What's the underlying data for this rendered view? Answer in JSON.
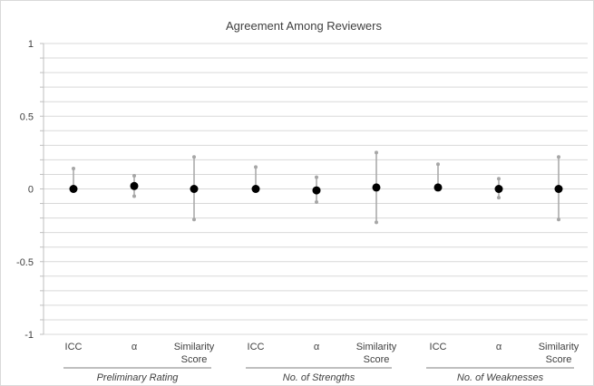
{
  "chart_data": {
    "type": "scatter",
    "title": "Agreement Among Reviewers",
    "xlabel": "",
    "ylabel": "",
    "ylim": [
      -1,
      1
    ],
    "yticks": [
      {
        "value": 1,
        "label": "1"
      },
      {
        "value": 0.5,
        "label": "0.5"
      },
      {
        "value": 0,
        "label": "0"
      },
      {
        "value": -0.5,
        "label": "-0.5"
      },
      {
        "value": -1,
        "label": "-1"
      }
    ],
    "minor_grid_step": 0.1,
    "grid": true,
    "legend": "none",
    "groups": [
      {
        "name": "Preliminary Rating",
        "categories": [
          "ICC",
          "α",
          "Similarity Score"
        ]
      },
      {
        "name": "No. of Strengths",
        "categories": [
          "ICC",
          "α",
          "Similarity Score"
        ]
      },
      {
        "name": "No. of Weaknesses",
        "categories": [
          "ICC",
          "α",
          "Similarity Score"
        ]
      }
    ],
    "points": [
      {
        "group": "Preliminary Rating",
        "category": "ICC",
        "value": 0.0,
        "upper": 0.14,
        "lower": 0.0
      },
      {
        "group": "Preliminary Rating",
        "category": "α",
        "value": 0.02,
        "upper": 0.09,
        "lower": -0.05
      },
      {
        "group": "Preliminary Rating",
        "category": "Similarity Score",
        "value": 0.0,
        "upper": 0.22,
        "lower": -0.21
      },
      {
        "group": "No. of Strengths",
        "category": "ICC",
        "value": 0.0,
        "upper": 0.15,
        "lower": 0.0
      },
      {
        "group": "No. of Strengths",
        "category": "α",
        "value": -0.01,
        "upper": 0.08,
        "lower": -0.09
      },
      {
        "group": "No. of Strengths",
        "category": "Similarity Score",
        "value": 0.01,
        "upper": 0.25,
        "lower": -0.23
      },
      {
        "group": "No. of Weaknesses",
        "category": "ICC",
        "value": 0.01,
        "upper": 0.17,
        "lower": 0.01
      },
      {
        "group": "No. of Weaknesses",
        "category": "α",
        "value": 0.0,
        "upper": 0.07,
        "lower": -0.06
      },
      {
        "group": "No. of Weaknesses",
        "category": "Similarity Score",
        "value": 0.0,
        "upper": 0.22,
        "lower": -0.21
      }
    ],
    "colors": {
      "point": "#000000",
      "whisker": "#a6a6a6",
      "grid": "#d9d9d9",
      "axis": "#bfbfbf",
      "text": "#404040"
    }
  }
}
